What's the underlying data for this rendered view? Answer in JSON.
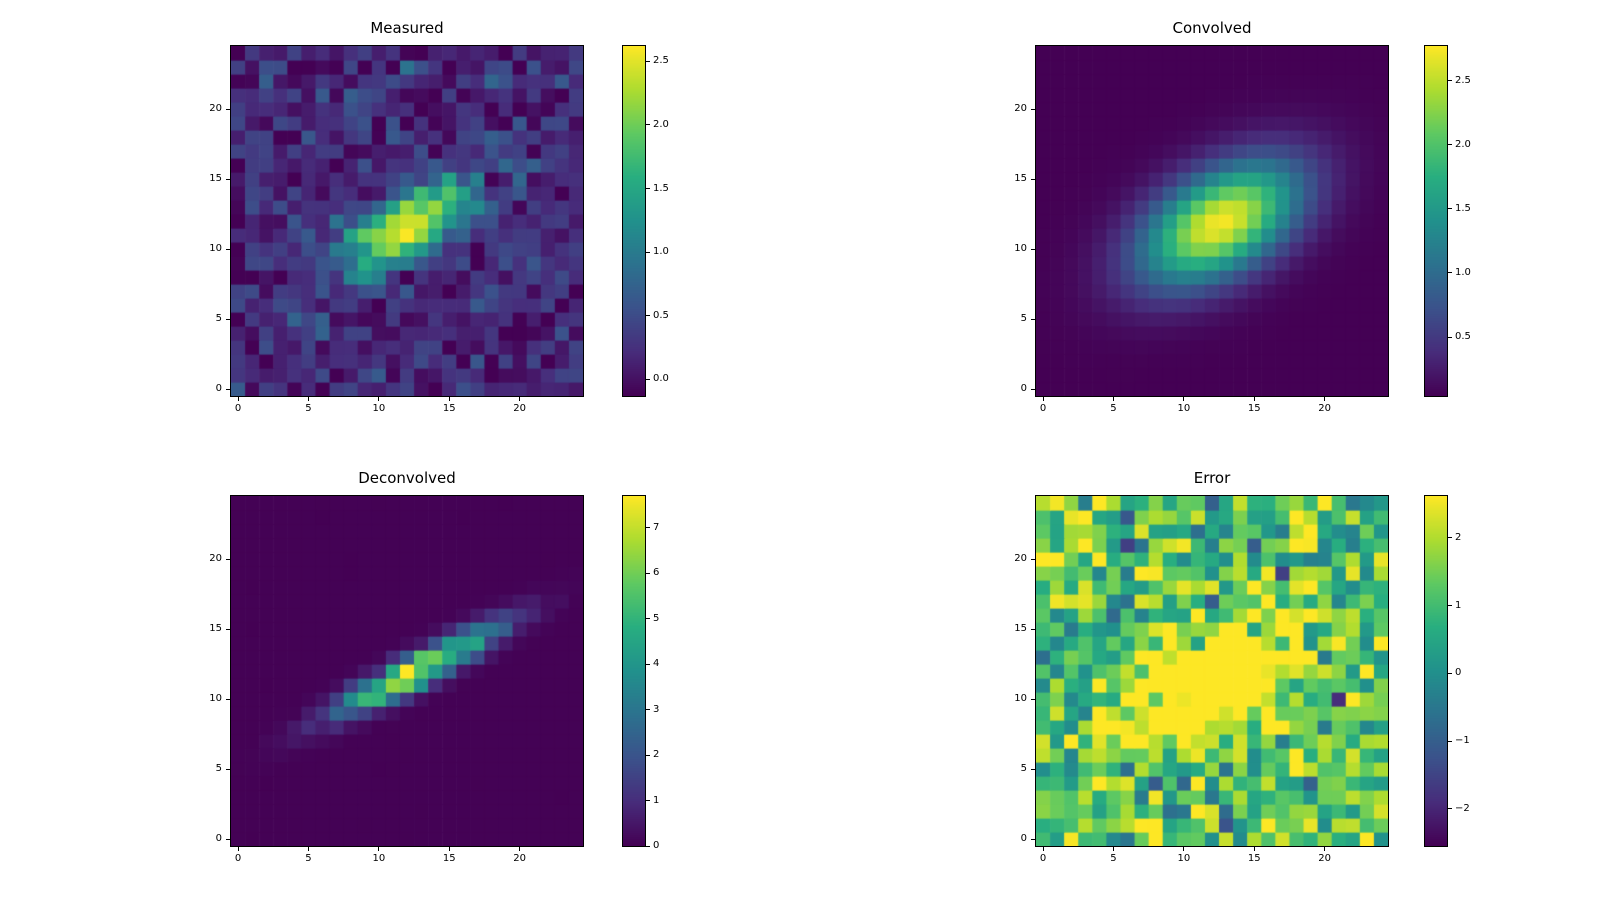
{
  "figure": {
    "background": "#ffffff",
    "colormap": "viridis",
    "colormap_stops": [
      "#440154",
      "#472d7b",
      "#3b528b",
      "#2c728e",
      "#21918c",
      "#28ae80",
      "#5ec962",
      "#addc30",
      "#fde725"
    ],
    "text_color": "#000000"
  },
  "chart_data": [
    {
      "id": "measured",
      "type": "heatmap",
      "title": "Measured",
      "nx": 25,
      "ny": 25,
      "x_tick_values": [
        0,
        5,
        10,
        15,
        20
      ],
      "x_tick_labels": [
        "0",
        "5",
        "10",
        "15",
        "20"
      ],
      "y_tick_values": [
        0,
        5,
        10,
        15,
        20
      ],
      "y_tick_labels": [
        "0",
        "5",
        "10",
        "15",
        "20"
      ],
      "vmin": -0.13,
      "vmax": 2.62,
      "colorbar_tick_values": [
        0.0,
        0.5,
        1.0,
        1.5,
        2.0,
        2.5
      ],
      "colorbar_tick_labels": [
        "0.0",
        "0.5",
        "1.0",
        "1.5",
        "2.0",
        "2.5"
      ],
      "model": {
        "kind": "elongated-gaussian-blob",
        "center_x": 12.0,
        "center_y": 11.6,
        "angle_deg": 29,
        "sigma_major": 3.6,
        "sigma_minor": 1.4,
        "amplitude": 2.35,
        "offset": 0.18,
        "noise_sigma": 0.22,
        "noise_mode": "add",
        "seed": 42
      }
    },
    {
      "id": "convolved",
      "type": "heatmap",
      "title": "Convolved",
      "nx": 25,
      "ny": 25,
      "x_tick_values": [
        0,
        5,
        10,
        15,
        20
      ],
      "x_tick_labels": [
        "0",
        "5",
        "10",
        "15",
        "20"
      ],
      "y_tick_values": [
        0,
        5,
        10,
        15,
        20
      ],
      "y_tick_labels": [
        "0",
        "5",
        "10",
        "15",
        "20"
      ],
      "vmin": 0.04,
      "vmax": 2.77,
      "colorbar_tick_values": [
        0.5,
        1.0,
        1.5,
        2.0,
        2.5
      ],
      "colorbar_tick_labels": [
        "0.5",
        "1.0",
        "1.5",
        "2.0",
        "2.5"
      ],
      "model": {
        "kind": "elongated-gaussian-blob",
        "center_x": 12.6,
        "center_y": 11.9,
        "angle_deg": 31,
        "sigma_major": 4.3,
        "sigma_minor": 2.4,
        "amplitude": 2.7,
        "offset": 0.04,
        "noise_sigma": 0,
        "noise_mode": "none",
        "seed": 1
      }
    },
    {
      "id": "deconvolved",
      "type": "heatmap",
      "title": "Deconvolved",
      "nx": 25,
      "ny": 25,
      "x_tick_values": [
        0,
        5,
        10,
        15,
        20
      ],
      "x_tick_labels": [
        "0",
        "5",
        "10",
        "15",
        "20"
      ],
      "y_tick_values": [
        0,
        5,
        10,
        15,
        20
      ],
      "y_tick_labels": [
        "0",
        "5",
        "10",
        "15",
        "20"
      ],
      "vmin": 0.0,
      "vmax": 7.7,
      "colorbar_tick_values": [
        0,
        1,
        2,
        3,
        4,
        5,
        6,
        7
      ],
      "colorbar_tick_labels": [
        "0",
        "1",
        "2",
        "3",
        "4",
        "5",
        "6",
        "7"
      ],
      "model": {
        "kind": "narrow-diagonal-streak",
        "center_x": 12.8,
        "center_y": 12.1,
        "angle_deg": 28,
        "sigma_major": 4.2,
        "sigma_minor": 0.75,
        "amplitude": 7.5,
        "offset": 0.02,
        "noise_sigma": 0.22,
        "noise_mode": "mult",
        "seed": 7
      }
    },
    {
      "id": "error",
      "type": "heatmap",
      "title": "Error",
      "nx": 25,
      "ny": 25,
      "x_tick_values": [
        0,
        5,
        10,
        15,
        20
      ],
      "x_tick_labels": [
        "0",
        "5",
        "10",
        "15",
        "20"
      ],
      "y_tick_values": [
        0,
        5,
        10,
        15,
        20
      ],
      "y_tick_labels": [
        "0",
        "5",
        "10",
        "15",
        "20"
      ],
      "vmin": -2.55,
      "vmax": 2.62,
      "colorbar_tick_values": [
        -2,
        -1,
        0,
        1,
        2
      ],
      "colorbar_tick_labels": [
        "−2",
        "−1",
        "0",
        "1",
        "2"
      ],
      "model": {
        "kind": "noise-with-saturated-diagonal",
        "center_x": 12.0,
        "center_y": 11.5,
        "angle_deg": 30,
        "sigma_major": 5.0,
        "sigma_minor": 2.3,
        "amplitude": 3.5,
        "offset": 1.05,
        "noise_sigma": 0.95,
        "noise_mode": "add",
        "seed": 3
      }
    }
  ]
}
